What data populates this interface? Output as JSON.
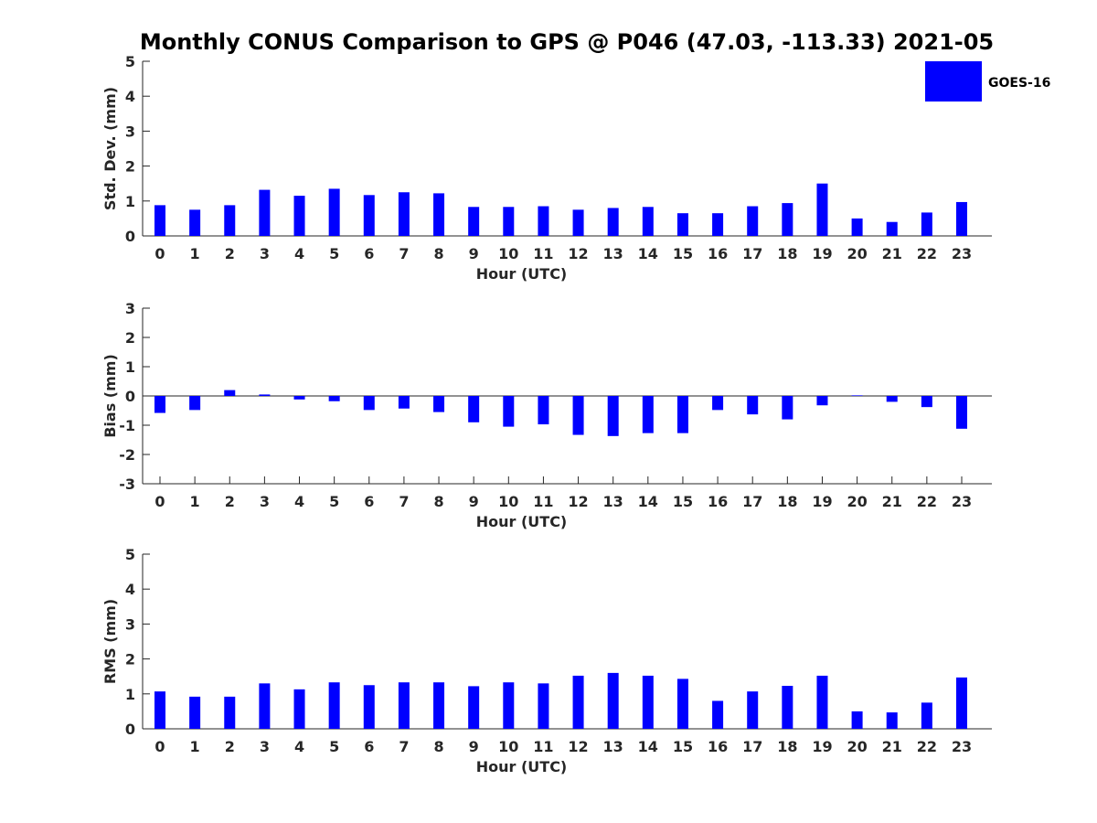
{
  "title": "Monthly CONUS Comparison to GPS @ P046 (47.03, -113.33) 2021-05",
  "legend": {
    "label": "GOES-16",
    "color": "#0000ff",
    "placement": "top-right"
  },
  "chart_data": [
    {
      "type": "bar",
      "xlabel": "Hour (UTC)",
      "ylabel": "Std. Dev. (mm)",
      "ylim": [
        0,
        5
      ],
      "yticks": [
        "0",
        "1",
        "2",
        "3",
        "4",
        "5"
      ],
      "categories": [
        "0",
        "1",
        "2",
        "3",
        "4",
        "5",
        "6",
        "7",
        "8",
        "9",
        "10",
        "11",
        "12",
        "13",
        "14",
        "15",
        "16",
        "17",
        "18",
        "19",
        "20",
        "21",
        "22",
        "23"
      ],
      "series": [
        {
          "name": "GOES-16",
          "color": "#0000ff",
          "values": [
            0.88,
            0.75,
            0.88,
            1.32,
            1.15,
            1.35,
            1.17,
            1.25,
            1.22,
            0.83,
            0.83,
            0.85,
            0.75,
            0.8,
            0.83,
            0.65,
            0.65,
            0.85,
            0.94,
            1.5,
            0.5,
            0.4,
            0.67,
            0.97
          ]
        }
      ],
      "grid": false
    },
    {
      "type": "bar",
      "xlabel": "Hour (UTC)",
      "ylabel": "Bias (mm)",
      "ylim": [
        -3,
        3
      ],
      "yticks": [
        "-3",
        "-2",
        "-1",
        "0",
        "1",
        "2",
        "3"
      ],
      "categories": [
        "0",
        "1",
        "2",
        "3",
        "4",
        "5",
        "6",
        "7",
        "8",
        "9",
        "10",
        "11",
        "12",
        "13",
        "14",
        "15",
        "16",
        "17",
        "18",
        "19",
        "20",
        "21",
        "22",
        "23"
      ],
      "series": [
        {
          "name": "GOES-16",
          "color": "#0000ff",
          "values": [
            -0.58,
            -0.48,
            0.2,
            0.05,
            -0.12,
            -0.18,
            -0.48,
            -0.43,
            -0.55,
            -0.9,
            -1.05,
            -0.97,
            -1.33,
            -1.37,
            -1.27,
            -1.27,
            -0.48,
            -0.63,
            -0.8,
            -0.32,
            0.02,
            -0.2,
            -0.38,
            -1.12
          ]
        }
      ],
      "grid": false
    },
    {
      "type": "bar",
      "xlabel": "Hour (UTC)",
      "ylabel": "RMS (mm)",
      "ylim": [
        0,
        5
      ],
      "yticks": [
        "0",
        "1",
        "2",
        "3",
        "4",
        "5"
      ],
      "categories": [
        "0",
        "1",
        "2",
        "3",
        "4",
        "5",
        "6",
        "7",
        "8",
        "9",
        "10",
        "11",
        "12",
        "13",
        "14",
        "15",
        "16",
        "17",
        "18",
        "19",
        "20",
        "21",
        "22",
        "23"
      ],
      "series": [
        {
          "name": "GOES-16",
          "color": "#0000ff",
          "values": [
            1.07,
            0.92,
            0.92,
            1.3,
            1.13,
            1.33,
            1.25,
            1.33,
            1.33,
            1.22,
            1.33,
            1.3,
            1.52,
            1.6,
            1.52,
            1.43,
            0.8,
            1.07,
            1.23,
            1.52,
            0.5,
            0.47,
            0.75,
            1.47
          ]
        }
      ],
      "grid": false
    }
  ]
}
